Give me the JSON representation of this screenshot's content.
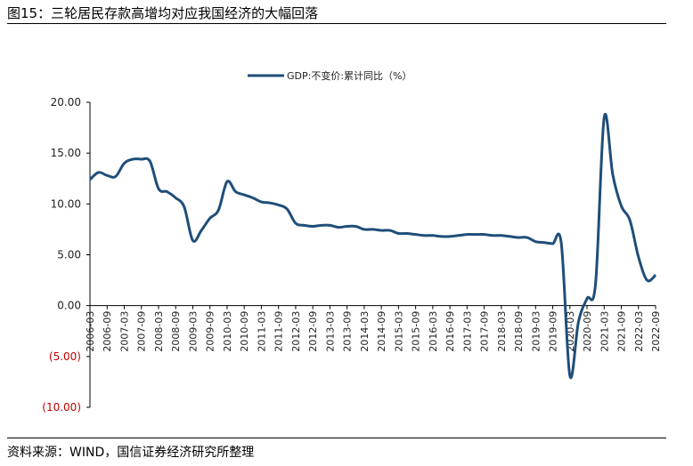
{
  "header": {
    "title": "图15：三轮居民存款高增均对应我国经济的大幅回落"
  },
  "footer": {
    "source": "资料来源：WIND，国信证券经济研究所整理"
  },
  "colors": {
    "line": "#1f4e79",
    "negative_tick": "#c00000",
    "axis": "#000000"
  },
  "chart_data": {
    "type": "line",
    "title": "",
    "xlabel": "",
    "ylabel": "",
    "ylim": [
      -10,
      20
    ],
    "yticks": [
      20,
      15,
      10,
      5,
      0,
      -5,
      -10
    ],
    "ytick_labels": [
      "20.00",
      "15.00",
      "10.00",
      "5.00",
      "0.00",
      "(5.00)",
      "(10.00)"
    ],
    "x_tick_labels": [
      "2006-03",
      "2006-09",
      "2007-03",
      "2007-09",
      "2008-03",
      "2008-09",
      "2009-03",
      "2009-09",
      "2010-03",
      "2010-09",
      "2011-03",
      "2011-09",
      "2012-03",
      "2012-09",
      "2013-03",
      "2013-09",
      "2014-03",
      "2014-09",
      "2015-03",
      "2015-09",
      "2016-03",
      "2016-09",
      "2017-03",
      "2017-09",
      "2018-03",
      "2018-09",
      "2019-03",
      "2019-09",
      "2020-03",
      "2020-09",
      "2021-03",
      "2021-09",
      "2022-03",
      "2022-09"
    ],
    "legend_position": "top-center",
    "grid": false,
    "series": [
      {
        "name": "GDP:不变价:累计同比（%）",
        "x": [
          "2006-03",
          "2006-06",
          "2006-09",
          "2006-12",
          "2007-03",
          "2007-06",
          "2007-09",
          "2007-12",
          "2008-03",
          "2008-06",
          "2008-09",
          "2008-12",
          "2009-03",
          "2009-06",
          "2009-09",
          "2009-12",
          "2010-03",
          "2010-06",
          "2010-09",
          "2010-12",
          "2011-03",
          "2011-06",
          "2011-09",
          "2011-12",
          "2012-03",
          "2012-06",
          "2012-09",
          "2012-12",
          "2013-03",
          "2013-06",
          "2013-09",
          "2013-12",
          "2014-03",
          "2014-06",
          "2014-09",
          "2014-12",
          "2015-03",
          "2015-06",
          "2015-09",
          "2015-12",
          "2016-03",
          "2016-06",
          "2016-09",
          "2016-12",
          "2017-03",
          "2017-06",
          "2017-09",
          "2017-12",
          "2018-03",
          "2018-06",
          "2018-09",
          "2018-12",
          "2019-03",
          "2019-06",
          "2019-09",
          "2019-12",
          "2020-03",
          "2020-06",
          "2020-09",
          "2020-12",
          "2021-03",
          "2021-06",
          "2021-09",
          "2021-12",
          "2022-03",
          "2022-06",
          "2022-09"
        ],
        "values": [
          12.4,
          13.1,
          12.8,
          12.7,
          14.0,
          14.4,
          14.4,
          14.2,
          11.5,
          11.2,
          10.6,
          9.7,
          6.4,
          7.4,
          8.6,
          9.4,
          12.2,
          11.2,
          10.9,
          10.6,
          10.2,
          10.1,
          9.9,
          9.5,
          8.1,
          7.9,
          7.8,
          7.9,
          7.9,
          7.7,
          7.8,
          7.8,
          7.5,
          7.5,
          7.4,
          7.4,
          7.1,
          7.1,
          7.0,
          6.9,
          6.9,
          6.8,
          6.8,
          6.9,
          7.0,
          7.0,
          7.0,
          6.9,
          6.9,
          6.8,
          6.7,
          6.7,
          6.3,
          6.2,
          6.1,
          6.1,
          -6.9,
          -1.6,
          0.7,
          2.2,
          18.5,
          12.9,
          9.8,
          8.4,
          4.8,
          2.5,
          3.0
        ]
      }
    ]
  }
}
